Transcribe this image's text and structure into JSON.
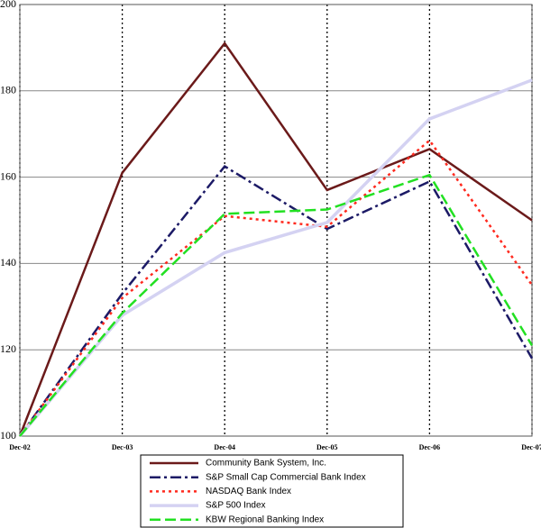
{
  "chart_data": {
    "type": "line",
    "categories": [
      "Dec-02",
      "Dec-03",
      "Dec-04",
      "Dec-05",
      "Dec-06",
      "Dec-07"
    ],
    "ylim": [
      100,
      200
    ],
    "yticks": [
      100,
      120,
      140,
      160,
      180,
      200
    ],
    "grid": true,
    "series": [
      {
        "name": "Community Bank System, Inc.",
        "color": "#6b1a1a",
        "style": "solid",
        "values": [
          100,
          161,
          191,
          157,
          166.5,
          150
        ]
      },
      {
        "name": "S&P Small Cap Commercial Bank Index",
        "color": "#1c1a66",
        "style": "dashdot",
        "values": [
          100,
          133,
          162.5,
          148,
          159,
          118
        ]
      },
      {
        "name": "NASDAQ Bank Index",
        "color": "#ff2a1f",
        "style": "dotted",
        "values": [
          100,
          132,
          151,
          148.5,
          168.5,
          135
        ]
      },
      {
        "name": "S&P 500 Index",
        "color": "#d4d2f2",
        "style": "solid-thick",
        "values": [
          100,
          128,
          142.5,
          149.5,
          173.5,
          182.5
        ]
      },
      {
        "name": "KBW Regional Banking Index",
        "color": "#22e022",
        "style": "dashed",
        "values": [
          100,
          128.5,
          151.5,
          152.5,
          160.5,
          121
        ]
      }
    ]
  }
}
